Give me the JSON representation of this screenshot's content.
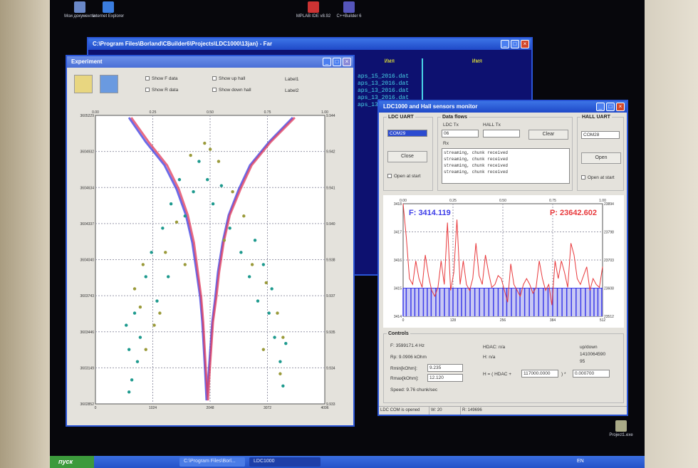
{
  "desktop": {
    "icons": [
      {
        "label": "Мои документы"
      },
      {
        "label": "Internet Explorer"
      },
      {
        "label": "MPLAB IDE v8.92"
      },
      {
        "label": "C++Builder 6"
      },
      {
        "label": "Project1.exe"
      }
    ]
  },
  "far_window": {
    "title": "C:\\Program Files\\Borland\\CBuilder6\\Projects\\LDC1000\\13jan} - Far",
    "col_header": "Имя",
    "files": [
      "aps_15_2016.dat",
      "aps_13_2016.dat",
      "aps_13_2016.dat",
      "aps_13_2016.dat",
      "aps_13_2016.dat"
    ]
  },
  "experiment_window": {
    "title": "Experiment",
    "checkboxes": [
      {
        "label": "Show F data",
        "checked": true
      },
      {
        "label": "Show R data",
        "checked": true
      },
      {
        "label": "Show up hall",
        "checked": true
      },
      {
        "label": "Show down hall",
        "checked": true
      }
    ],
    "labels": [
      "Label1",
      "Label2"
    ],
    "icons": [
      "open-folder-icon",
      "save-icon"
    ]
  },
  "ldc_window": {
    "title": "LDC1000 and Hall sensors monitor",
    "ldc_uart": {
      "group": "LDC UART",
      "port": "COM29",
      "button": "Close",
      "open_at_start": "Open at start"
    },
    "data_flows": {
      "group": "Data flows",
      "ldc_tx_label": "LDC Tx",
      "ldc_tx_value": "06",
      "hall_tx_label": "HALL Tx",
      "hall_tx_value": "",
      "clear": "Clear",
      "rx_label": "Rx",
      "rx_lines": [
        "streaming, chunk received",
        "streaming, chunk received",
        "streaming, chunk received",
        "streaming, chunk received"
      ]
    },
    "hall_uart": {
      "group": "HALL UART",
      "port": "COM28",
      "button": "Open",
      "open_at_start": "Open at start"
    },
    "controls": {
      "group": "Controls",
      "f": "F:  3599171.4 Hz",
      "rp": "Rp:  9.0906 kOhm",
      "rmin_label": "Rmin[kOhm]:",
      "rmin_value": "9.235",
      "rmax_label": "Rmax[kOhm]:",
      "rmax_value": "12.120",
      "speed": "Speed:  9.76 chunk/sec",
      "hdac": "HDAC:   n/a",
      "h": "H:   n/a",
      "updown": "up/down",
      "counter": "1410064590",
      "pct": "95",
      "formula_left": "H = ( HDAC +",
      "formula_offset": "117000.0000",
      "formula_mid": ")  *",
      "formula_scale": "0.000700"
    },
    "status": [
      "LDC COM is opened",
      "W: 20",
      "R: 149696"
    ]
  },
  "taskbar": {
    "start": "пуск",
    "tasks": [
      "C:\\Program Files\\Borl...",
      "LDC1000"
    ],
    "lang": "EN"
  },
  "chart_data": [
    {
      "type": "scatter",
      "top_ticks": [
        "0.00",
        "0.25",
        "0.50",
        "0.75",
        "1.00"
      ],
      "left_ticks": [
        "3605229",
        "3604932",
        "3604634",
        "3604337",
        "3604040",
        "3603743",
        "3603446",
        "3603149",
        "3602852"
      ],
      "right_ticks": [
        "9.944",
        "9.942",
        "9.941",
        "9.940",
        "9.938",
        "9.937",
        "9.935",
        "9.934",
        "9.933"
      ],
      "bottom_ticks": [
        "0",
        "1024",
        "2048",
        "3072",
        "4096"
      ],
      "xlim": [
        0,
        4096
      ],
      "ylim": [
        3602852,
        3605229
      ],
      "grid": true,
      "colors": {
        "f_up": "#3a3ae0",
        "f_down": "#e03a5a",
        "r_a": "#1e9a8e",
        "r_b": "#9a9a3a"
      },
      "series": [
        {
          "key": "f_up",
          "points": [
            [
              598,
              3605211
            ],
            [
              900,
              3605010
            ],
            [
              1234,
              3604818
            ],
            [
              1450,
              3604620
            ],
            [
              1616,
              3604407
            ],
            [
              1730,
              3604180
            ],
            [
              1806,
              3603938
            ],
            [
              1870,
              3603730
            ],
            [
              1908,
              3603527
            ],
            [
              1959,
              3603116
            ],
            [
              1984,
              3602881
            ],
            [
              2023,
              3603116
            ],
            [
              2086,
              3603527
            ],
            [
              2140,
              3603730
            ],
            [
              2188,
              3603938
            ],
            [
              2270,
              3604180
            ],
            [
              2379,
              3604407
            ],
            [
              2560,
              3604620
            ],
            [
              2760,
              3604818
            ],
            [
              3100,
              3605010
            ],
            [
              3524,
              3605211
            ]
          ]
        },
        {
          "key": "f_down",
          "points": [
            [
              640,
              3605211
            ],
            [
              950,
              3605010
            ],
            [
              1280,
              3604818
            ],
            [
              1490,
              3604620
            ],
            [
              1650,
              3604407
            ],
            [
              1760,
              3604180
            ],
            [
              1830,
              3603938
            ],
            [
              1890,
              3603730
            ],
            [
              1925,
              3603527
            ],
            [
              1975,
              3603116
            ],
            [
              2010,
              3602881
            ],
            [
              2040,
              3603116
            ],
            [
              2100,
              3603527
            ],
            [
              2160,
              3603730
            ],
            [
              2210,
              3603938
            ],
            [
              2290,
              3604180
            ],
            [
              2400,
              3604407
            ],
            [
              2590,
              3604620
            ],
            [
              2790,
              3604818
            ],
            [
              3130,
              3605010
            ],
            [
              3560,
              3605211
            ]
          ]
        },
        {
          "key": "r_a",
          "points": [
            [
              550,
              3603500
            ],
            [
              600,
              3603300
            ],
            [
              700,
              3603600
            ],
            [
              800,
              3603400
            ],
            [
              650,
              3603050
            ],
            [
              900,
              3603900
            ],
            [
              1000,
              3604100
            ],
            [
              1100,
              3603700
            ],
            [
              1200,
              3604300
            ],
            [
              1350,
              3604500
            ],
            [
              1500,
              3604700
            ],
            [
              1600,
              3604400
            ],
            [
              1750,
              3604600
            ],
            [
              1850,
              3604850
            ],
            [
              2000,
              3604700
            ],
            [
              2100,
              3604500
            ],
            [
              2250,
              3604650
            ],
            [
              2400,
              3604300
            ],
            [
              2600,
              3604100
            ],
            [
              2750,
              3603900
            ],
            [
              2900,
              3603700
            ],
            [
              3000,
              3604000
            ],
            [
              3100,
              3603600
            ],
            [
              3200,
              3603400
            ],
            [
              3300,
              3603200
            ],
            [
              3350,
              3603000
            ],
            [
              3150,
              3603800
            ],
            [
              2850,
              3604200
            ],
            [
              1300,
              3603900
            ],
            [
              750,
              3603200
            ],
            [
              3400,
              3603350
            ],
            [
              600,
              3602950
            ]
          ]
        },
        {
          "key": "r_b",
          "points": [
            [
              700,
              3603800
            ],
            [
              850,
              3604000
            ],
            [
              1050,
              3603500
            ],
            [
              1250,
              3604100
            ],
            [
              1450,
              3604350
            ],
            [
              1700,
              3604900
            ],
            [
              1950,
              3605000
            ],
            [
              2050,
              3604950
            ],
            [
              2200,
              3604850
            ],
            [
              2450,
              3604600
            ],
            [
              2650,
              3604400
            ],
            [
              2800,
              3604000
            ],
            [
              3050,
              3603850
            ],
            [
              3250,
              3603600
            ],
            [
              3350,
              3603400
            ],
            [
              900,
              3603300
            ],
            [
              1150,
              3603600
            ],
            [
              3000,
              3603300
            ],
            [
              2300,
              3604200
            ],
            [
              1600,
              3604000
            ],
            [
              3300,
              3603100
            ],
            [
              800,
              3603650
            ]
          ]
        }
      ]
    },
    {
      "type": "line",
      "top_ticks": [
        "0.00",
        "0.25",
        "0.50",
        "0.75",
        "1.00"
      ],
      "left_ticks": [
        "3418",
        "3417",
        "3416",
        "3415",
        "3414"
      ],
      "right_ticks": [
        "23894",
        "23798",
        "23703",
        "23608",
        "23512"
      ],
      "bottom_ticks": [
        "0",
        "128",
        "256",
        "384",
        "512"
      ],
      "xlim": [
        0,
        512
      ],
      "ylim_left": [
        3414,
        3418
      ],
      "ylim_right": [
        23512,
        23894
      ],
      "grid": true,
      "labels": {
        "f": "F: 3414.119",
        "p": "P: 23642.602"
      },
      "colors": {
        "f": "#3b3be8",
        "p": "#e8383b"
      },
      "f_series": {
        "value": 3415,
        "x": [
          0,
          8,
          20,
          30,
          40,
          52,
          62,
          72,
          84,
          94,
          106,
          118,
          128,
          140,
          150,
          160,
          172,
          184,
          196,
          208,
          220,
          232,
          244,
          256,
          266,
          278,
          290,
          300,
          312,
          324,
          336,
          348,
          360,
          372,
          384,
          396,
          408,
          420,
          432,
          444,
          456,
          468,
          480,
          490,
          500,
          510
        ]
      },
      "p_series": [
        23894,
        23780,
        23640,
        23620,
        23700,
        23640,
        23610,
        23720,
        23650,
        23600,
        23580,
        23610,
        23700,
        23620,
        23830,
        23600,
        23660,
        23840,
        23620,
        23700,
        23620,
        23600,
        23640,
        23760,
        23650,
        23620,
        23720,
        23660,
        23610,
        23620,
        23650,
        23640,
        23600,
        23560,
        23690,
        23620,
        23600,
        23580,
        23620,
        23640,
        23620,
        23590,
        23610,
        23700,
        23640,
        23600,
        23620,
        23550,
        23700,
        23640,
        23700,
        23660,
        23610,
        23760,
        23720,
        23640,
        23620,
        23650,
        23680,
        23600,
        23640,
        23620,
        23610,
        23680
      ]
    }
  ]
}
